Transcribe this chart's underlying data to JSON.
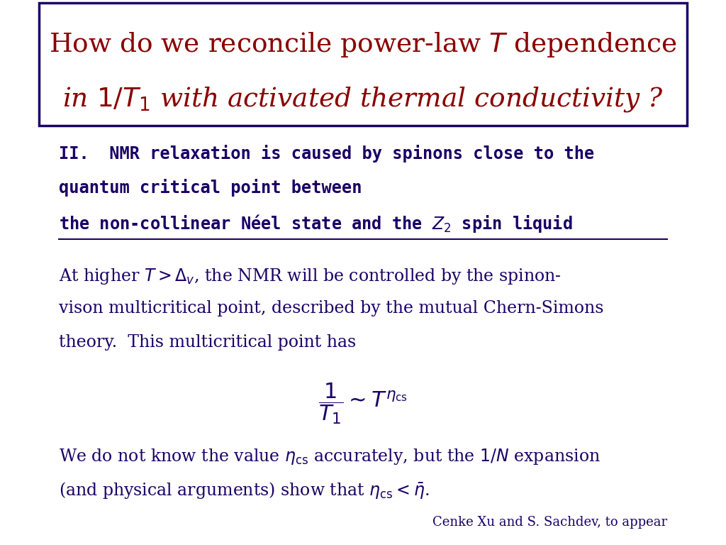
{
  "bg_color": "#ffffff",
  "title_box_color": "#1a0066",
  "title_text_color": "#8b0000",
  "body_text_color": "#1a0066",
  "title_line1": "How do we reconcile power-law $T$ dependence",
  "title_line2": "in $1/T_1$ with activated thermal conductivity ?",
  "section_line1": "II.  NMR relaxation is caused by spinons close to the",
  "section_line2": "quantum critical point between",
  "section_line3": "the non-collinear Néel state and the $Z_2$ spin liquid",
  "para1_line1": "At higher $T > \\Delta_v$, the NMR will be controlled by the spinon-",
  "para1_line2": "vison multicritical point, described by the mutual Chern-Simons",
  "para1_line3": "theory.  This multicritical point has",
  "formula": "$\\dfrac{1}{T_1} \\sim T^{\\eta_{\\mathrm{cs}}}$",
  "para2_line1": "We do not know the value $\\eta_{\\mathrm{cs}}$ accurately, but the $1/N$ expansion",
  "para2_line2": "(and physical arguments) show that $\\eta_{\\mathrm{cs}} < \\bar{\\eta}$.",
  "citation": "Cenke Xu and S. Sachdev, to appear"
}
